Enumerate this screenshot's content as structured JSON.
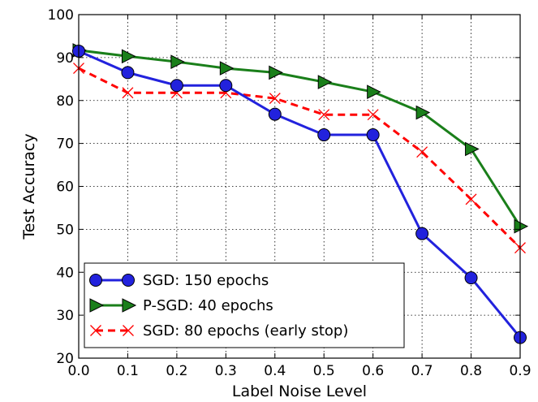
{
  "chart_data": {
    "type": "line",
    "xlabel": "Label Noise Level",
    "ylabel": "Test Accuracy",
    "xlim": [
      0.0,
      0.9
    ],
    "ylim": [
      20,
      100
    ],
    "xticks": [
      "0.0",
      "0.1",
      "0.2",
      "0.3",
      "0.4",
      "0.5",
      "0.6",
      "0.7",
      "0.8",
      "0.9"
    ],
    "yticks": [
      "20",
      "30",
      "40",
      "50",
      "60",
      "70",
      "80",
      "90",
      "100"
    ],
    "grid": true,
    "legend_position": "lower-left",
    "x": [
      0.0,
      0.1,
      0.2,
      0.3,
      0.4,
      0.5,
      0.6,
      0.7,
      0.8,
      0.9
    ],
    "series": [
      {
        "name": "SGD: 150 epochs",
        "color": "#2222dd",
        "marker": "circle",
        "line_style": "solid",
        "values": [
          91.5,
          86.5,
          83.5,
          83.5,
          76.8,
          72.0,
          72.0,
          49.0,
          38.7,
          24.8
        ]
      },
      {
        "name": "P-SGD: 40 epochs",
        "color": "#1a7f1a",
        "marker": "triangle-right",
        "line_style": "solid",
        "values": [
          91.7,
          90.3,
          89.0,
          87.5,
          86.5,
          84.3,
          82.0,
          77.2,
          68.7,
          50.7
        ]
      },
      {
        "name": "SGD: 80 epochs (early stop)",
        "color": "#ff0000",
        "marker": "x",
        "line_style": "dashed",
        "values": [
          87.5,
          81.8,
          81.8,
          81.8,
          80.5,
          76.7,
          76.7,
          68.0,
          57.0,
          45.7
        ]
      }
    ]
  }
}
